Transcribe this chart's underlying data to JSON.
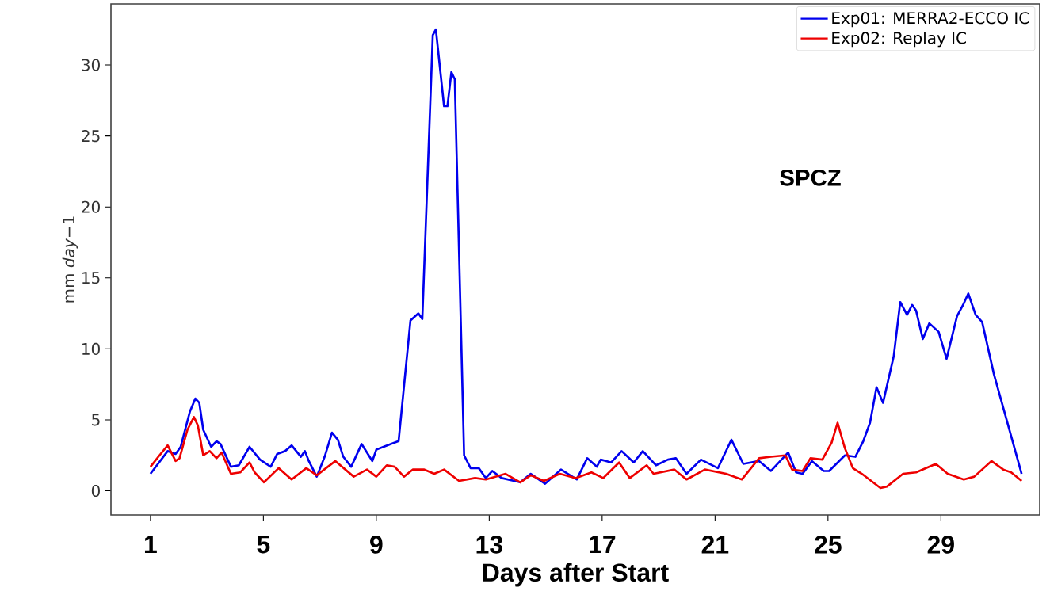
{
  "chart_data": {
    "type": "line",
    "xlabel": "Days after Start",
    "ylabel": "mm *day*−1",
    "annotations": [
      "SPCZ"
    ],
    "xlim": [
      -0.4,
      32.5
    ],
    "ylim": [
      -1.7,
      34.3
    ],
    "xticks": [
      1,
      5,
      9,
      13,
      17,
      21,
      25,
      29
    ],
    "yticks": [
      0,
      5,
      10,
      15,
      20,
      25,
      30
    ],
    "grid": false,
    "legend": "top right",
    "marker": "none",
    "line_style": "solid",
    "series": [
      {
        "name": "Exp01: MERRA2-ECCO IC",
        "color": "#0000ee",
        "x": [
          1.0,
          1.61,
          1.89,
          2.07,
          2.4,
          2.59,
          2.73,
          2.87,
          3.15,
          3.34,
          3.48,
          3.85,
          4.13,
          4.51,
          4.88,
          5.26,
          5.49,
          5.77,
          6.0,
          6.33,
          6.47,
          6.61,
          6.89,
          7.17,
          7.43,
          7.64,
          7.83,
          8.11,
          8.48,
          8.86,
          9.0,
          9.51,
          9.79,
          10.21,
          10.49,
          10.63,
          11.0,
          11.11,
          11.4,
          11.52,
          11.66,
          11.78,
          12.11,
          12.34,
          12.63,
          12.88,
          13.11,
          13.44,
          14.1,
          14.47,
          14.98,
          15.54,
          16.1,
          16.47,
          16.81,
          16.95,
          17.32,
          17.69,
          18.12,
          18.44,
          18.91,
          19.33,
          19.61,
          19.99,
          20.5,
          21.1,
          21.58,
          22.0,
          22.56,
          22.98,
          23.59,
          23.87,
          24.1,
          24.43,
          24.85,
          25.04,
          25.6,
          25.97,
          26.25,
          26.49,
          26.72,
          26.95,
          27.33,
          27.56,
          27.8,
          27.98,
          28.12,
          28.36,
          28.59,
          28.92,
          29.2,
          29.57,
          29.81,
          29.97,
          30.23,
          30.46,
          30.88,
          31.86
        ],
        "values": [
          1.2,
          2.8,
          2.6,
          3.1,
          5.6,
          6.5,
          6.2,
          4.3,
          3.1,
          3.5,
          3.3,
          1.7,
          1.8,
          3.1,
          2.2,
          1.7,
          2.6,
          2.8,
          3.2,
          2.4,
          2.8,
          2.1,
          1.0,
          2.4,
          4.1,
          3.6,
          2.4,
          1.7,
          3.3,
          2.1,
          2.9,
          3.3,
          3.5,
          12.0,
          12.5,
          12.1,
          32.1,
          32.5,
          27.1,
          27.1,
          29.5,
          29.0,
          2.5,
          1.6,
          1.6,
          0.9,
          1.4,
          0.9,
          0.6,
          1.2,
          0.5,
          1.5,
          0.8,
          2.3,
          1.7,
          2.2,
          2.0,
          2.8,
          2.0,
          2.8,
          1.8,
          2.2,
          2.3,
          1.2,
          2.2,
          1.6,
          3.6,
          1.9,
          2.1,
          1.4,
          2.7,
          1.3,
          1.2,
          2.1,
          1.4,
          1.4,
          2.5,
          2.4,
          3.5,
          4.8,
          7.3,
          6.2,
          9.5,
          13.3,
          12.4,
          13.1,
          12.7,
          10.7,
          11.8,
          11.2,
          9.3,
          12.3,
          13.2,
          13.9,
          12.4,
          11.9,
          8.2,
          1.2
        ]
      },
      {
        "name": "Exp02: Replay IC",
        "color": "#ee0000",
        "x": [
          1.0,
          1.28,
          1.61,
          1.89,
          2.03,
          2.31,
          2.54,
          2.68,
          2.87,
          3.1,
          3.34,
          3.52,
          3.85,
          4.18,
          4.51,
          4.69,
          5.02,
          5.54,
          6.0,
          6.52,
          6.89,
          7.55,
          8.2,
          8.67,
          9.0,
          9.37,
          9.65,
          9.98,
          10.29,
          10.7,
          11.05,
          11.4,
          11.93,
          12.5,
          12.88,
          13.58,
          14.1,
          14.47,
          14.94,
          15.5,
          16.06,
          16.62,
          17.04,
          17.6,
          17.98,
          18.58,
          18.82,
          19.56,
          19.99,
          20.64,
          21.39,
          21.95,
          22.56,
          22.98,
          23.49,
          23.73,
          24.1,
          24.38,
          24.8,
          25.13,
          25.34,
          25.6,
          25.88,
          26.2,
          26.86,
          27.09,
          27.66,
          28.12,
          28.82,
          29.24,
          29.81,
          30.18,
          30.79,
          31.21,
          31.49,
          31.86
        ],
        "values": [
          1.7,
          2.4,
          3.2,
          2.1,
          2.3,
          4.3,
          5.2,
          4.6,
          2.5,
          2.8,
          2.3,
          2.7,
          1.2,
          1.3,
          2.0,
          1.3,
          0.6,
          1.6,
          0.8,
          1.6,
          1.1,
          2.1,
          1.0,
          1.5,
          1.0,
          1.8,
          1.7,
          1.0,
          1.5,
          1.5,
          1.2,
          1.5,
          0.7,
          0.9,
          0.8,
          1.2,
          0.6,
          1.1,
          0.7,
          1.2,
          0.9,
          1.3,
          0.9,
          2.0,
          0.9,
          1.8,
          1.2,
          1.5,
          0.8,
          1.5,
          1.2,
          0.8,
          2.3,
          2.4,
          2.5,
          1.5,
          1.4,
          2.3,
          2.2,
          3.4,
          4.8,
          3.0,
          1.6,
          1.2,
          0.2,
          0.3,
          1.2,
          1.3,
          1.9,
          1.2,
          0.8,
          1.0,
          2.1,
          1.5,
          1.3,
          0.7
        ]
      }
    ]
  }
}
